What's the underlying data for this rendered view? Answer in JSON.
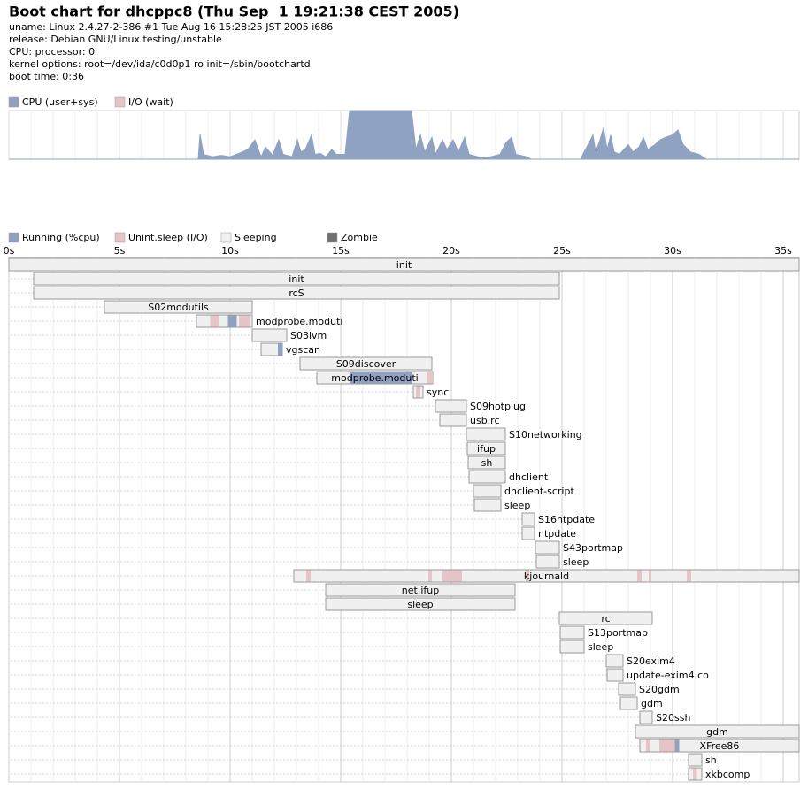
{
  "header": {
    "title": "Boot chart for dhcppc8 (Thu Sep  1 19:21:38 CEST 2005)",
    "lines": [
      "uname: Linux 2.4.27-2-386 #1 Tue Aug 16 15:28:25 JST 2005 i686",
      "release: Debian GNU/Linux testing/unstable",
      "CPU: processor: 0",
      "kernel options: root=/dev/ida/c0d0p1 ro init=/sbin/bootchartd",
      "boot time: 0:36"
    ]
  },
  "chart_data": [
    {
      "type": "area",
      "xlim": [
        0,
        35.72
      ],
      "ylim": [
        0,
        100
      ],
      "series": [
        {
          "name": "CPU (user+sys)",
          "color": "#8fa2c2",
          "x": [
            0,
            8.56,
            8.64,
            8.8,
            9.2,
            9.6,
            10.0,
            10.4,
            10.8,
            11.12,
            11.4,
            11.6,
            11.92,
            12.2,
            12.4,
            12.8,
            13.04,
            13.2,
            13.4,
            13.68,
            13.84,
            14.08,
            14.32,
            14.6,
            14.8,
            15.2,
            15.4,
            18.2,
            18.4,
            18.6,
            18.8,
            19.12,
            19.28,
            19.6,
            19.8,
            20.08,
            20.32,
            20.6,
            20.8,
            21.2,
            21.6,
            22.2,
            22.48,
            22.72,
            22.92,
            23.4,
            23.6,
            25.84,
            26.0,
            26.24,
            26.4,
            26.52,
            26.72,
            26.88,
            27.04,
            27.2,
            27.36,
            27.6,
            28.0,
            28.2,
            28.48,
            28.68,
            28.88,
            29.2,
            29.44,
            29.68,
            30.0,
            30.24,
            30.48,
            30.8,
            31.2,
            31.52,
            35.72
          ],
          "values": [
            0,
            0,
            51,
            10,
            5,
            8,
            5,
            12,
            20,
            40,
            5,
            25,
            8,
            40,
            10,
            5,
            40,
            15,
            20,
            50,
            10,
            12,
            5,
            20,
            10,
            10,
            100,
            100,
            20,
            50,
            15,
            45,
            10,
            40,
            20,
            40,
            15,
            45,
            10,
            5,
            3,
            10,
            35,
            45,
            10,
            5,
            0,
            0,
            15,
            35,
            50,
            15,
            40,
            65,
            20,
            50,
            15,
            10,
            30,
            15,
            25,
            45,
            20,
            30,
            40,
            45,
            50,
            60,
            30,
            15,
            10,
            0,
            0
          ]
        },
        {
          "name": "I/O (wait)",
          "color": "#e5c5c7"
        }
      ]
    },
    {
      "type": "gantt",
      "xlim": [
        0,
        35.72
      ],
      "xticks": [
        {
          "value": 0,
          "label": "0s"
        },
        {
          "value": 5,
          "label": "5s"
        },
        {
          "value": 10,
          "label": "10s"
        },
        {
          "value": 15,
          "label": "15s"
        },
        {
          "value": 20,
          "label": "20s"
        },
        {
          "value": 25,
          "label": "25s"
        },
        {
          "value": 30,
          "label": "30s"
        },
        {
          "value": 35,
          "label": "35s"
        }
      ],
      "states": [
        {
          "name": "Running (%cpu)",
          "color": "#8fa2c2"
        },
        {
          "name": "Unint.sleep (I/O)",
          "color": "#e5c5c7"
        },
        {
          "name": "Sleeping",
          "color": "#f0f0f0"
        },
        {
          "name": "Zombie",
          "color": "#707070"
        }
      ],
      "processes": [
        {
          "name": "init",
          "start": 0,
          "end": 35.72
        },
        {
          "name": "init",
          "start": 1.12,
          "end": 24.88
        },
        {
          "name": "rcS",
          "start": 1.12,
          "end": 24.88
        },
        {
          "name": "S02modutils",
          "start": 4.32,
          "end": 11.0
        },
        {
          "name": "modprobe.moduti",
          "start": 8.48,
          "end": 11.0,
          "running": [
            [
              9.9,
              10.3
            ]
          ],
          "io": [
            [
              9.1,
              9.5
            ],
            [
              10.4,
              10.9
            ]
          ]
        },
        {
          "name": "S03lvm",
          "start": 11.0,
          "end": 12.56
        },
        {
          "name": "vgscan",
          "start": 11.4,
          "end": 12.36,
          "running": [
            [
              12.16,
              12.36
            ]
          ]
        },
        {
          "name": "S09discover",
          "start": 13.16,
          "end": 19.12
        },
        {
          "name": "modprobe.moduti",
          "start": 13.92,
          "end": 19.16,
          "running": [
            [
              15.4,
              18.24
            ]
          ],
          "io": [
            [
              18.9,
              19.16
            ]
          ]
        },
        {
          "name": "sync",
          "start": 18.28,
          "end": 18.72,
          "io": [
            [
              18.4,
              18.6
            ]
          ]
        },
        {
          "name": "S09hotplug",
          "start": 19.28,
          "end": 20.68
        },
        {
          "name": "usb.rc",
          "start": 19.48,
          "end": 20.68
        },
        {
          "name": "S10networking",
          "start": 20.68,
          "end": 22.44
        },
        {
          "name": "ifup",
          "start": 20.72,
          "end": 22.44
        },
        {
          "name": "sh",
          "start": 20.76,
          "end": 22.44
        },
        {
          "name": "dhclient",
          "start": 20.8,
          "end": 22.44
        },
        {
          "name": "dhclient-script",
          "start": 21.0,
          "end": 22.24
        },
        {
          "name": "sleep",
          "start": 21.04,
          "end": 22.24
        },
        {
          "name": "S16ntpdate",
          "start": 23.2,
          "end": 23.76
        },
        {
          "name": "ntpdate",
          "start": 23.2,
          "end": 23.76
        },
        {
          "name": "S43portmap",
          "start": 23.8,
          "end": 24.88
        },
        {
          "name": "sleep",
          "start": 23.84,
          "end": 24.88
        },
        {
          "name": "kjournald",
          "start": 12.88,
          "end": 35.72,
          "io": [
            [
              13.44,
              13.64
            ],
            [
              18.96,
              19.12
            ],
            [
              19.6,
              20.48
            ],
            [
              23.36,
              23.52
            ],
            [
              28.4,
              28.6
            ],
            [
              28.92,
              29.04
            ],
            [
              30.64,
              30.84
            ]
          ]
        },
        {
          "name": "net.ifup",
          "start": 14.32,
          "end": 22.88
        },
        {
          "name": "sleep",
          "start": 14.32,
          "end": 22.88
        },
        {
          "name": "rc",
          "start": 24.88,
          "end": 29.08
        },
        {
          "name": "S13portmap",
          "start": 24.92,
          "end": 26.0
        },
        {
          "name": "sleep",
          "start": 24.92,
          "end": 26.0
        },
        {
          "name": "S20exim4",
          "start": 27.0,
          "end": 27.76
        },
        {
          "name": "update-exim4.co",
          "start": 27.04,
          "end": 27.76
        },
        {
          "name": "S20gdm",
          "start": 27.56,
          "end": 28.32
        },
        {
          "name": "gdm",
          "start": 27.64,
          "end": 28.4
        },
        {
          "name": "S20ssh",
          "start": 28.52,
          "end": 29.08
        },
        {
          "name": "gdm",
          "start": 28.32,
          "end": 35.72
        },
        {
          "name": "XFree86",
          "start": 28.52,
          "end": 35.72,
          "running": [
            [
              30.1,
              30.3
            ]
          ],
          "io": [
            [
              28.8,
              29.0
            ],
            [
              29.4,
              30.1
            ]
          ]
        },
        {
          "name": "sh",
          "start": 30.72,
          "end": 31.32
        },
        {
          "name": "xkbcomp",
          "start": 30.72,
          "end": 31.32,
          "io": [
            [
              30.92,
              31.1
            ]
          ]
        }
      ]
    }
  ]
}
